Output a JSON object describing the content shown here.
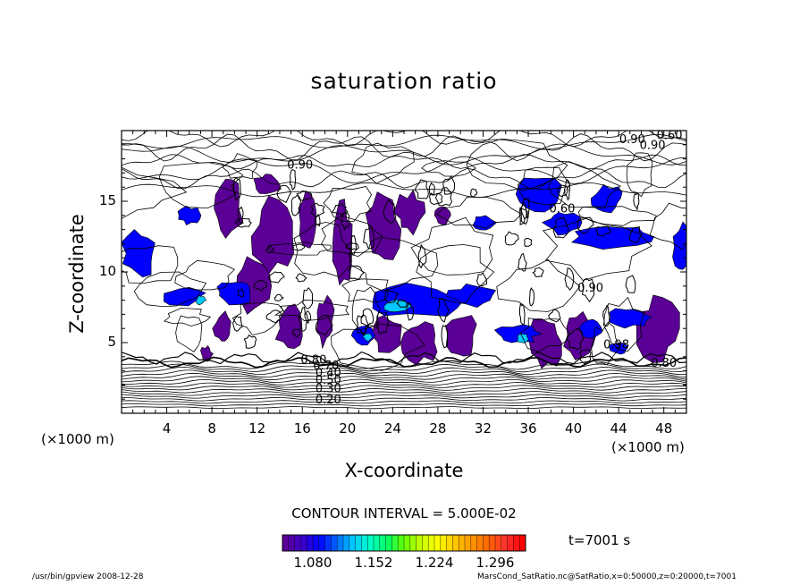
{
  "chart_data": {
    "type": "heatmap",
    "title": "saturation ratio",
    "xlabel": "X-coordinate",
    "ylabel": "Z-coordinate",
    "x_unit": "(×1000 m)",
    "x_unit_right": "(×1000 m)",
    "xlim": [
      0,
      50
    ],
    "ylim": [
      0,
      20
    ],
    "x_ticks": [
      4,
      8,
      12,
      16,
      20,
      24,
      28,
      32,
      36,
      40,
      44,
      48
    ],
    "y_ticks": [
      5,
      10,
      15
    ],
    "contour_interval": "CONTOUR INTERVAL = 5.000E-02",
    "contour_labels": [
      {
        "text": "0.60",
        "x": 48.5,
        "y": 19.4
      },
      {
        "text": "0.90",
        "x": 45.2,
        "y": 19.1
      },
      {
        "text": "0.90",
        "x": 47.0,
        "y": 18.7
      },
      {
        "text": "0.90",
        "x": 15.8,
        "y": 17.3
      },
      {
        "text": "0.60",
        "x": 39.0,
        "y": 14.2
      },
      {
        "text": "0.90",
        "x": 41.5,
        "y": 8.6
      },
      {
        "text": "0.98",
        "x": 43.8,
        "y": 4.6
      },
      {
        "text": "0.80",
        "x": 48.0,
        "y": 3.3
      },
      {
        "text": "0.80",
        "x": 17.0,
        "y": 3.5
      },
      {
        "text": "0.70",
        "x": 18.1,
        "y": 3.1
      },
      {
        "text": "0.50",
        "x": 18.3,
        "y": 2.1
      },
      {
        "text": "0.40",
        "x": 18.3,
        "y": 2.6
      },
      {
        "text": "0.30",
        "x": 18.3,
        "y": 1.5
      },
      {
        "text": "0.20",
        "x": 18.3,
        "y": 0.7
      }
    ],
    "supersat_regions_purple": [
      {
        "x": 9.5,
        "y": 14.5,
        "rx": 1.2,
        "ry": 2.0
      },
      {
        "x": 13.5,
        "y": 12.5,
        "rx": 1.8,
        "ry": 2.5
      },
      {
        "x": 11.5,
        "y": 9.0,
        "rx": 1.5,
        "ry": 1.8
      },
      {
        "x": 15.0,
        "y": 6.0,
        "rx": 1.3,
        "ry": 1.5
      },
      {
        "x": 16.5,
        "y": 13.5,
        "rx": 0.8,
        "ry": 2.0
      },
      {
        "x": 19.5,
        "y": 12.0,
        "rx": 0.9,
        "ry": 2.8
      },
      {
        "x": 18.0,
        "y": 6.5,
        "rx": 0.8,
        "ry": 1.6
      },
      {
        "x": 23.0,
        "y": 13.0,
        "rx": 1.5,
        "ry": 2.5
      },
      {
        "x": 25.5,
        "y": 14.2,
        "rx": 1.2,
        "ry": 1.4
      },
      {
        "x": 23.5,
        "y": 5.5,
        "rx": 1.2,
        "ry": 1.5
      },
      {
        "x": 26.5,
        "y": 5.0,
        "rx": 1.5,
        "ry": 1.4
      },
      {
        "x": 30.0,
        "y": 5.5,
        "rx": 1.3,
        "ry": 1.5
      },
      {
        "x": 37.5,
        "y": 5.0,
        "rx": 1.4,
        "ry": 1.8
      },
      {
        "x": 40.5,
        "y": 5.5,
        "rx": 1.4,
        "ry": 1.6
      },
      {
        "x": 47.5,
        "y": 6.0,
        "rx": 1.8,
        "ry": 2.2
      },
      {
        "x": 9.0,
        "y": 6.0,
        "rx": 0.8,
        "ry": 1.2
      },
      {
        "x": 7.5,
        "y": 4.2,
        "rx": 0.5,
        "ry": 0.5
      },
      {
        "x": 13.0,
        "y": 16.2,
        "rx": 1.2,
        "ry": 0.8
      },
      {
        "x": 28.5,
        "y": 14.0,
        "rx": 0.7,
        "ry": 0.6
      }
    ],
    "supersat_regions_blue": [
      {
        "x": 37.0,
        "y": 15.5,
        "rx": 1.8,
        "ry": 1.2
      },
      {
        "x": 43.0,
        "y": 15.2,
        "rx": 1.3,
        "ry": 0.9
      },
      {
        "x": 43.5,
        "y": 12.5,
        "rx": 3.5,
        "ry": 0.8
      },
      {
        "x": 39.0,
        "y": 13.5,
        "rx": 1.5,
        "ry": 0.8
      },
      {
        "x": 1.5,
        "y": 11.3,
        "rx": 1.5,
        "ry": 1.6
      },
      {
        "x": 32.0,
        "y": 13.5,
        "rx": 1.0,
        "ry": 0.5
      },
      {
        "x": 6.0,
        "y": 14.0,
        "rx": 1.0,
        "ry": 0.6
      },
      {
        "x": 49.5,
        "y": 11.8,
        "rx": 0.7,
        "ry": 1.5
      },
      {
        "x": 10.0,
        "y": 8.6,
        "rx": 1.8,
        "ry": 0.8
      },
      {
        "x": 5.5,
        "y": 8.2,
        "rx": 1.8,
        "ry": 0.6
      },
      {
        "x": 26.0,
        "y": 8.0,
        "rx": 4.0,
        "ry": 1.3
      },
      {
        "x": 31.0,
        "y": 8.3,
        "rx": 2.0,
        "ry": 0.8
      },
      {
        "x": 35.0,
        "y": 5.6,
        "rx": 2.0,
        "ry": 0.6
      },
      {
        "x": 21.5,
        "y": 5.5,
        "rx": 1.0,
        "ry": 0.6
      },
      {
        "x": 45.0,
        "y": 6.8,
        "rx": 1.8,
        "ry": 0.7
      },
      {
        "x": 41.5,
        "y": 6.0,
        "rx": 1.0,
        "ry": 0.6
      },
      {
        "x": 44.0,
        "y": 4.6,
        "rx": 0.8,
        "ry": 0.4
      }
    ],
    "supersat_regions_cyan": [
      {
        "x": 24.5,
        "y": 7.6,
        "rx": 1.2,
        "ry": 0.5
      },
      {
        "x": 21.8,
        "y": 5.4,
        "rx": 0.4,
        "ry": 0.3
      },
      {
        "x": 35.5,
        "y": 5.3,
        "rx": 0.5,
        "ry": 0.3
      },
      {
        "x": 7.0,
        "y": 8.0,
        "rx": 0.4,
        "ry": 0.3
      }
    ],
    "colorbar": {
      "min": 1.044,
      "max": 1.332,
      "labels": [
        "1.080",
        "1.152",
        "1.224",
        "1.296"
      ],
      "label_values": [
        1.08,
        1.152,
        1.224,
        1.296
      ],
      "colors": [
        "#5a0096",
        "#3c00c8",
        "#0000ff",
        "#0064ff",
        "#00c8ff",
        "#00ffc8",
        "#00ff64",
        "#64ff00",
        "#c8ff00",
        "#ffff00",
        "#ffc800",
        "#ff9600",
        "#ff6400",
        "#ff3232",
        "#ff0000"
      ]
    },
    "time_label": "t=7001 s"
  },
  "footer": {
    "left": "/usr/bin/gpview   2008-12-28",
    "right": "MarsCond_SatRatio.nc@SatRatio,x=0:50000,z=0:20000,t=7001"
  }
}
